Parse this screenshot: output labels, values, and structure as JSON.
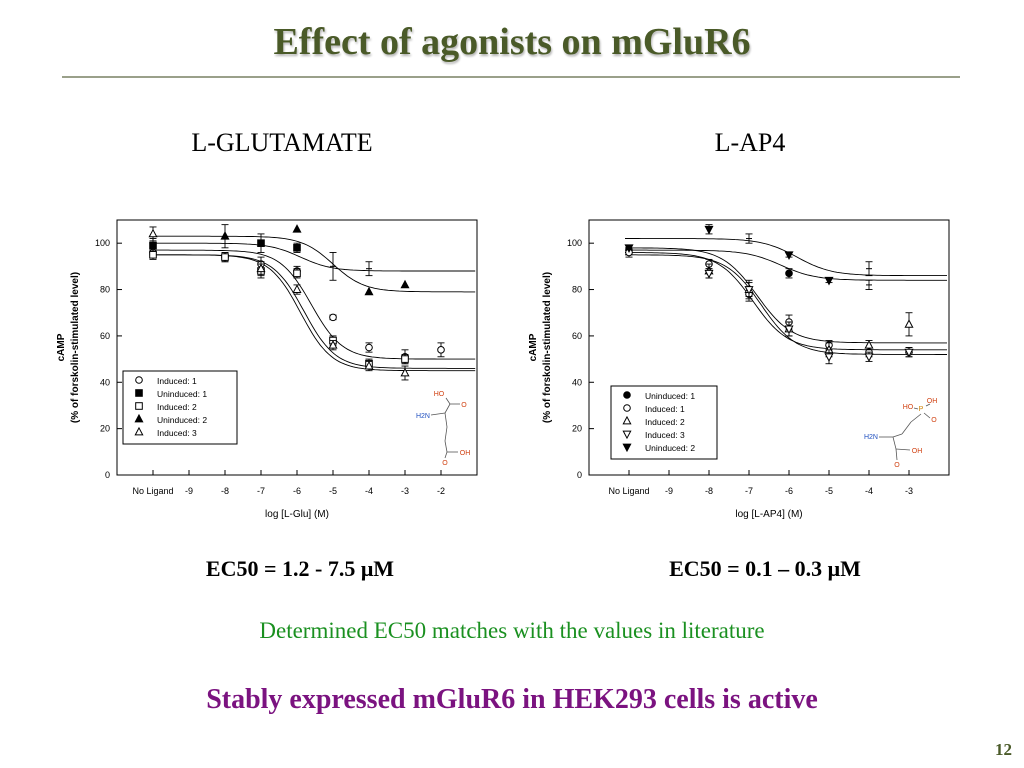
{
  "slide": {
    "title": "Effect of agonists on mGluR6",
    "left_heading": "L-GLUTAMATE",
    "right_heading": "L-AP4",
    "left_ec50": "EC50 = 1.2 - 7.5 μM",
    "right_ec50": "EC50 = 0.1 – 0.3 μM",
    "note": "Determined EC50 matches with the values in literature",
    "conclusion": "Stably expressed mGluR6 in HEK293 cells is active",
    "page_number": "12"
  },
  "chart_data": [
    {
      "type": "scatter",
      "xlabel": "log [L-Glu] (M)",
      "ylabel_line1": "cAMP",
      "ylabel_line2": "(% of forskolin-stimulated level)",
      "x_ticks": [
        "No Ligand",
        "-9",
        "-8",
        "-7",
        "-6",
        "-5",
        "-4",
        "-3",
        "-2"
      ],
      "x_tick_values": [
        -10,
        -9,
        -8,
        -7,
        -6,
        -5,
        -4,
        -3,
        -2
      ],
      "xlim": [
        -11,
        -1
      ],
      "y_ticks": [
        "0",
        "20",
        "40",
        "60",
        "80",
        "100"
      ],
      "y_tick_values": [
        0,
        20,
        40,
        60,
        80,
        100
      ],
      "ylim": [
        0,
        110
      ],
      "molecule_labels": [
        "HO",
        "O",
        "H2N",
        "O",
        "OH"
      ],
      "series": [
        {
          "name": "Induced: 1",
          "marker": "circle-open",
          "x": [
            -10,
            -8,
            -7,
            -6,
            -5,
            -4,
            -3,
            -2
          ],
          "y": [
            96,
            94,
            91,
            88,
            68,
            55,
            51,
            54
          ],
          "err": [
            2,
            2,
            3,
            2,
            1,
            2,
            3,
            3
          ]
        },
        {
          "name": "Uninduced: 1",
          "marker": "square-filled",
          "x": [
            -10,
            -7,
            -6
          ],
          "y": [
            99,
            100,
            98
          ],
          "err": [
            3,
            4,
            2
          ]
        },
        {
          "name": "Induced: 2",
          "marker": "square-open",
          "x": [
            -10,
            -8,
            -7,
            -6,
            -5,
            -4,
            -3
          ],
          "y": [
            95,
            94,
            88,
            87,
            58,
            48,
            50
          ],
          "err": [
            2,
            2,
            3,
            2,
            2,
            2,
            2
          ]
        },
        {
          "name": "Uninduced: 2",
          "marker": "triangle-up-filled",
          "x": [
            -8,
            -6,
            -4,
            -3
          ],
          "y": [
            103,
            106,
            79,
            82
          ],
          "err": [
            5,
            0,
            0,
            0
          ]
        },
        {
          "name": "Induced: 3",
          "marker": "triangle-up-open",
          "x": [
            -10,
            -7,
            -6,
            -5,
            -4,
            -3
          ],
          "y": [
            104,
            89,
            80,
            56,
            47,
            44
          ],
          "err": [
            3,
            3,
            2,
            2,
            2,
            3
          ]
        }
      ],
      "unlabeled_points": [
        {
          "x": -5,
          "y": 90,
          "err": 6
        },
        {
          "x": -4,
          "y": 89,
          "err": 3
        }
      ],
      "fit_curves": [
        {
          "top": 97,
          "bottom": 50,
          "logec50": -5.6,
          "hill": 1
        },
        {
          "top": 95,
          "bottom": 45,
          "logec50": -5.9,
          "hill": 1
        },
        {
          "top": 95,
          "bottom": 46,
          "logec50": -5.8,
          "hill": 1
        },
        {
          "top": 100,
          "bottom": 88,
          "logec50": -5.9,
          "hill": 1
        },
        {
          "top": 103,
          "bottom": 79,
          "logec50": -5.0,
          "hill": 1
        }
      ]
    },
    {
      "type": "scatter",
      "xlabel": "log [L-AP4] (M)",
      "ylabel_line1": "cAMP",
      "ylabel_line2": "(% of forskolin-stimulated level)",
      "x_ticks": [
        "No Ligand",
        "-9",
        "-8",
        "-7",
        "-6",
        "-5",
        "-4",
        "-3"
      ],
      "x_tick_values": [
        -10,
        -9,
        -8,
        -7,
        -6,
        -5,
        -4,
        -3
      ],
      "xlim": [
        -11,
        -2
      ],
      "y_ticks": [
        "0",
        "20",
        "40",
        "60",
        "80",
        "100"
      ],
      "y_tick_values": [
        0,
        20,
        40,
        60,
        80,
        100
      ],
      "ylim": [
        0,
        110
      ],
      "molecule_labels": [
        "OH",
        "HO",
        "P",
        "O",
        "H2N",
        "O",
        "OH"
      ],
      "series": [
        {
          "name": "Uninduced: 1",
          "marker": "circle-filled",
          "x": [
            -10,
            -6
          ],
          "y": [
            97,
            87
          ],
          "err": [
            2,
            2
          ]
        },
        {
          "name": "Induced: 1",
          "marker": "circle-open",
          "x": [
            -10,
            -8,
            -7,
            -6,
            -5,
            -4,
            -3
          ],
          "y": [
            96,
            91,
            78,
            66,
            56,
            53,
            53
          ],
          "err": [
            2,
            2,
            3,
            3,
            2,
            2,
            2
          ]
        },
        {
          "name": "Induced: 2",
          "marker": "triangle-up-open",
          "x": [
            -8,
            -7,
            -6,
            -5,
            -4,
            -3
          ],
          "y": [
            88,
            80,
            63,
            54,
            56,
            65
          ],
          "err": [
            3,
            4,
            3,
            3,
            2,
            5
          ]
        },
        {
          "name": "Induced: 3",
          "marker": "triangle-down-open",
          "x": [
            -8,
            -7,
            -6,
            -5,
            -4,
            -3
          ],
          "y": [
            87,
            80,
            63,
            51,
            51,
            53
          ],
          "err": [
            2,
            3,
            3,
            3,
            2,
            2
          ]
        },
        {
          "name": "Uninduced: 2",
          "marker": "triangle-down-filled",
          "x": [
            -10,
            -8,
            -6,
            -5
          ],
          "y": [
            98,
            106,
            95,
            84
          ],
          "err": [
            0,
            2,
            1,
            1
          ]
        }
      ],
      "unlabeled_points": [
        {
          "x": -7,
          "y": 102,
          "err": 2
        },
        {
          "x": -4,
          "y": 89,
          "err": 3
        },
        {
          "x": -4,
          "y": 82,
          "err": 2
        }
      ],
      "fit_curves": [
        {
          "top": 98,
          "bottom": 57,
          "logec50": -6.8,
          "hill": 1
        },
        {
          "top": 96,
          "bottom": 54,
          "logec50": -6.9,
          "hill": 1
        },
        {
          "top": 95,
          "bottom": 52,
          "logec50": -6.7,
          "hill": 1
        },
        {
          "top": 97,
          "bottom": 84,
          "logec50": -6.2,
          "hill": 1
        },
        {
          "top": 102,
          "bottom": 86,
          "logec50": -5.8,
          "hill": 1
        }
      ]
    }
  ]
}
